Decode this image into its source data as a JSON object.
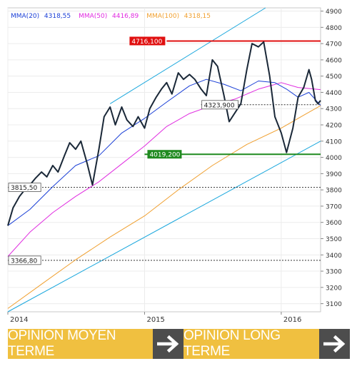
{
  "chart_data": {
    "type": "line",
    "x_start": "2014-01-01",
    "x_end": "2016-04-15",
    "x_ticks": [
      {
        "label": "2014",
        "date": "2014-01-01"
      },
      {
        "label": "2015",
        "date": "2015-01-01"
      },
      {
        "label": "2016",
        "date": "2016-01-01"
      }
    ],
    "ylim": [
      3050,
      4920
    ],
    "y_ticks": [
      3100,
      3200,
      3300,
      3400,
      3500,
      3600,
      3700,
      3800,
      3900,
      4000,
      4100,
      4200,
      4300,
      4400,
      4500,
      4600,
      4700,
      4800,
      4900
    ],
    "grid": true,
    "legend": [
      {
        "label": "MMA(20)",
        "value": "4318,55",
        "color": "#1a3fd6"
      },
      {
        "label": "MMA(50)",
        "value": "4416,89",
        "color": "#e02ce0"
      },
      {
        "label": "MMA(100)",
        "value": "4318,15",
        "color": "#f0a030"
      }
    ],
    "price": {
      "color": "#1a2838",
      "points": [
        [
          "2014-01-01",
          3580
        ],
        [
          "2014-01-15",
          3690
        ],
        [
          "2014-02-01",
          3760
        ],
        [
          "2014-02-15",
          3800
        ],
        [
          "2014-03-01",
          3830
        ],
        [
          "2014-03-15",
          3870
        ],
        [
          "2014-04-01",
          3910
        ],
        [
          "2014-04-15",
          3880
        ],
        [
          "2014-05-01",
          3950
        ],
        [
          "2014-05-15",
          3910
        ],
        [
          "2014-06-01",
          4010
        ],
        [
          "2014-06-15",
          4090
        ],
        [
          "2014-07-01",
          4050
        ],
        [
          "2014-07-15",
          4100
        ],
        [
          "2014-08-01",
          3960
        ],
        [
          "2014-08-15",
          3830
        ],
        [
          "2014-09-01",
          4050
        ],
        [
          "2014-09-15",
          4250
        ],
        [
          "2014-10-01",
          4310
        ],
        [
          "2014-10-15",
          4200
        ],
        [
          "2014-11-01",
          4310
        ],
        [
          "2014-11-15",
          4230
        ],
        [
          "2014-12-01",
          4190
        ],
        [
          "2014-12-15",
          4250
        ],
        [
          "2015-01-01",
          4180
        ],
        [
          "2015-01-15",
          4300
        ],
        [
          "2015-02-01",
          4370
        ],
        [
          "2015-02-15",
          4420
        ],
        [
          "2015-03-01",
          4460
        ],
        [
          "2015-03-15",
          4390
        ],
        [
          "2015-04-01",
          4520
        ],
        [
          "2015-04-15",
          4480
        ],
        [
          "2015-05-01",
          4510
        ],
        [
          "2015-05-15",
          4480
        ],
        [
          "2015-06-01",
          4420
        ],
        [
          "2015-06-15",
          4380
        ],
        [
          "2015-07-01",
          4600
        ],
        [
          "2015-07-15",
          4560
        ],
        [
          "2015-08-01",
          4380
        ],
        [
          "2015-08-15",
          4220
        ],
        [
          "2015-09-01",
          4280
        ],
        [
          "2015-09-15",
          4330
        ],
        [
          "2015-10-01",
          4540
        ],
        [
          "2015-10-15",
          4700
        ],
        [
          "2015-11-01",
          4680
        ],
        [
          "2015-11-15",
          4710
        ],
        [
          "2015-12-01",
          4500
        ],
        [
          "2015-12-15",
          4250
        ],
        [
          "2016-01-01",
          4150
        ],
        [
          "2016-01-15",
          4030
        ],
        [
          "2016-02-01",
          4180
        ],
        [
          "2016-02-15",
          4370
        ],
        [
          "2016-03-01",
          4430
        ],
        [
          "2016-03-15",
          4540
        ],
        [
          "2016-03-22",
          4480
        ],
        [
          "2016-04-01",
          4350
        ],
        [
          "2016-04-08",
          4330
        ],
        [
          "2016-04-15",
          4350
        ]
      ]
    },
    "mma20": {
      "color": "#1a3fd6",
      "points": [
        [
          "2014-01-01",
          3580
        ],
        [
          "2014-03-01",
          3680
        ],
        [
          "2014-05-01",
          3820
        ],
        [
          "2014-07-01",
          3950
        ],
        [
          "2014-09-01",
          4010
        ],
        [
          "2014-11-01",
          4150
        ],
        [
          "2015-01-01",
          4240
        ],
        [
          "2015-03-01",
          4340
        ],
        [
          "2015-05-01",
          4440
        ],
        [
          "2015-06-15",
          4480
        ],
        [
          "2015-08-01",
          4450
        ],
        [
          "2015-09-15",
          4410
        ],
        [
          "2015-11-01",
          4470
        ],
        [
          "2015-12-15",
          4460
        ],
        [
          "2016-01-15",
          4420
        ],
        [
          "2016-02-15",
          4370
        ],
        [
          "2016-03-15",
          4400
        ],
        [
          "2016-04-15",
          4320
        ]
      ]
    },
    "mma50": {
      "color": "#e02ce0",
      "points": [
        [
          "2014-01-01",
          3390
        ],
        [
          "2014-03-01",
          3540
        ],
        [
          "2014-05-01",
          3660
        ],
        [
          "2014-07-01",
          3760
        ],
        [
          "2014-09-01",
          3850
        ],
        [
          "2014-11-01",
          3960
        ],
        [
          "2015-01-01",
          4070
        ],
        [
          "2015-03-01",
          4190
        ],
        [
          "2015-05-01",
          4270
        ],
        [
          "2015-07-01",
          4320
        ],
        [
          "2015-09-01",
          4360
        ],
        [
          "2015-11-01",
          4420
        ],
        [
          "2016-01-01",
          4460
        ],
        [
          "2016-02-15",
          4430
        ],
        [
          "2016-04-15",
          4417
        ]
      ]
    },
    "mma100": {
      "color": "#f0a030",
      "points": [
        [
          "2014-01-01",
          3070
        ],
        [
          "2014-04-01",
          3220
        ],
        [
          "2014-07-01",
          3370
        ],
        [
          "2014-10-01",
          3510
        ],
        [
          "2015-01-01",
          3640
        ],
        [
          "2015-04-01",
          3800
        ],
        [
          "2015-07-01",
          3950
        ],
        [
          "2015-10-01",
          4080
        ],
        [
          "2016-01-01",
          4180
        ],
        [
          "2016-03-01",
          4260
        ],
        [
          "2016-04-15",
          4318
        ]
      ]
    },
    "trend_upper": {
      "color": "#1aa7dd",
      "from": [
        "2014-10-01",
        4330
      ],
      "to": [
        "2015-11-20",
        4920
      ]
    },
    "trend_lower": {
      "color": "#1aa7dd",
      "from": [
        "2014-01-01",
        3050
      ],
      "to": [
        "2016-04-15",
        4100
      ]
    },
    "resistance": {
      "value": 4716.1,
      "label": "4716,100",
      "color": "#e01010",
      "from": "2015-03-01"
    },
    "support": {
      "value": 4019.2,
      "label": "4019,200",
      "color": "#1f8a1f",
      "from": "2015-01-01"
    },
    "markers": [
      {
        "value": 3815.5,
        "label": "3815,50",
        "from": "2014-01-01",
        "label_at": "2014-01-01"
      },
      {
        "value": 3366.8,
        "label": "3366,80",
        "from": "2014-01-01",
        "label_at": "2014-01-01"
      },
      {
        "value": 4323.9,
        "label": "4323,900",
        "from": "2015-06-01",
        "label_at": "2015-06-01"
      }
    ]
  },
  "buttons": {
    "moyen_label": "OPINION MOYEN TERME",
    "long_label": "OPINION LONG TERME"
  },
  "colors": {
    "button_bg": "#f0c040",
    "arrow_bg": "#4d4d4d"
  }
}
